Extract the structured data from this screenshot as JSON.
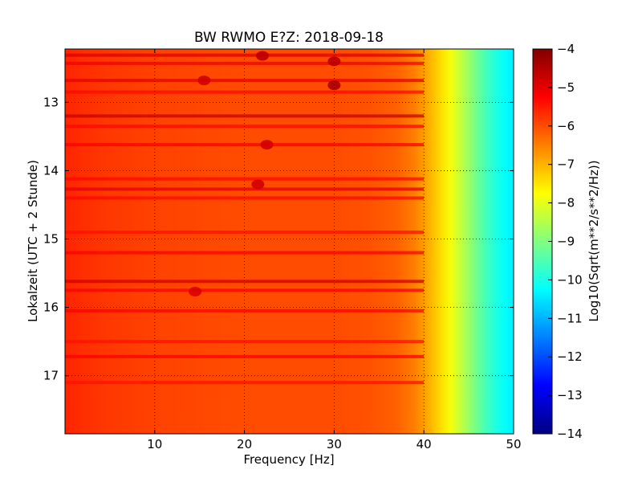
{
  "chart_data": {
    "type": "heatmap",
    "title": "BW RWMO E?Z: 2018-09-18",
    "xlabel": "Frequency [Hz]",
    "ylabel": "Lokalzeit (UTC + 2 Stunde)",
    "xlim": [
      0,
      50
    ],
    "ylim": [
      12.22,
      17.85
    ],
    "x_ticks": [
      10,
      20,
      30,
      40,
      50
    ],
    "y_ticks": [
      13,
      14,
      15,
      16,
      17
    ],
    "y_inverted": true,
    "grid": true,
    "colormap": "jet",
    "colorbar": {
      "label": "Log10(Sqrt(m**2/s**2/Hz))",
      "range": [
        -14,
        -4
      ],
      "ticks": [
        -4,
        -5,
        -6,
        -7,
        -8,
        -9,
        -10,
        -11,
        -12,
        -13,
        -14
      ]
    },
    "spectral_profile": {
      "frequency_hz": [
        0,
        2,
        5,
        10,
        15,
        20,
        25,
        30,
        34,
        37,
        39,
        40,
        41,
        42,
        43,
        44,
        45,
        46,
        47,
        48,
        49,
        50
      ],
      "log10_amplitude": [
        -5.6,
        -5.7,
        -5.8,
        -5.9,
        -5.95,
        -6.0,
        -6.0,
        -6.0,
        -6.05,
        -6.2,
        -6.5,
        -6.8,
        -7.1,
        -7.45,
        -7.85,
        -8.3,
        -8.75,
        -9.2,
        -9.6,
        -9.95,
        -10.2,
        -10.4
      ]
    },
    "bands": [
      {
        "time": 12.31,
        "level": -4.9
      },
      {
        "time": 12.43,
        "level": -5.1
      },
      {
        "time": 12.68,
        "level": -5.0
      },
      {
        "time": 12.85,
        "level": -5.3
      },
      {
        "time": 13.2,
        "level": -4.7
      },
      {
        "time": 13.35,
        "level": -5.3
      },
      {
        "time": 13.62,
        "level": -5.2
      },
      {
        "time": 14.12,
        "level": -5.3
      },
      {
        "time": 14.27,
        "level": -5.0
      },
      {
        "time": 14.4,
        "level": -5.3
      },
      {
        "time": 14.9,
        "level": -5.4
      },
      {
        "time": 15.2,
        "level": -5.2
      },
      {
        "time": 15.62,
        "level": -4.8
      },
      {
        "time": 15.75,
        "level": -5.2
      },
      {
        "time": 16.05,
        "level": -5.2
      },
      {
        "time": 16.5,
        "level": -5.4
      },
      {
        "time": 16.72,
        "level": -5.2
      },
      {
        "time": 17.1,
        "level": -5.4
      }
    ],
    "hotspots": [
      {
        "freq": 22.0,
        "time": 12.32,
        "level": -4.6
      },
      {
        "freq": 15.5,
        "time": 12.68,
        "level": -4.8
      },
      {
        "freq": 30.0,
        "time": 12.4,
        "level": -4.6
      },
      {
        "freq": 30.0,
        "time": 12.75,
        "level": -4.4
      },
      {
        "freq": 22.5,
        "time": 13.62,
        "level": -4.8
      },
      {
        "freq": 21.5,
        "time": 14.2,
        "level": -4.8
      },
      {
        "freq": 14.5,
        "time": 15.77,
        "level": -4.9
      }
    ]
  }
}
